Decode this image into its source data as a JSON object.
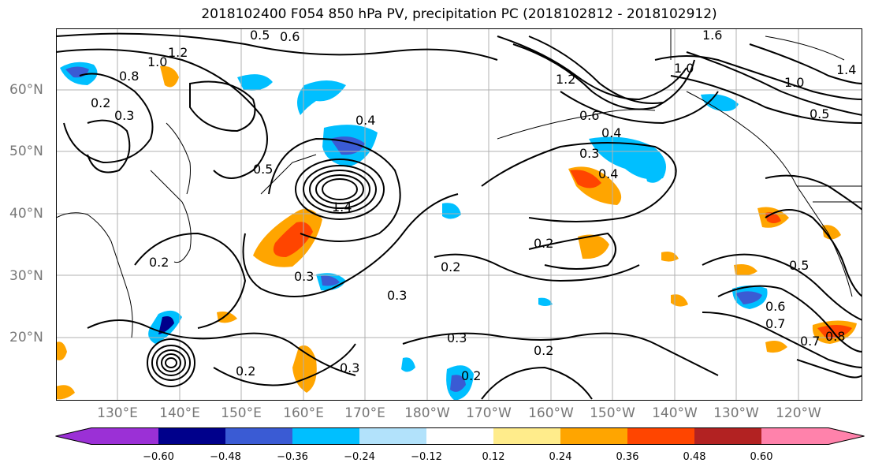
{
  "title": "2018102400 F054 850 hPa PV, precipitation PC (2018102812 - 2018102912)",
  "lat_labels": [
    "60°N",
    "50°N",
    "40°N",
    "30°N",
    "20°N"
  ],
  "lon_labels": [
    "130°E",
    "140°E",
    "150°E",
    "160°E",
    "170°E",
    "180°W",
    "170°W",
    "160°W",
    "150°W",
    "140°W",
    "130°W",
    "120°W"
  ],
  "colorbar": {
    "ticks": [
      "−0.60",
      "−0.48",
      "−0.36",
      "−0.24",
      "−0.12",
      "0.12",
      "0.24",
      "0.36",
      "0.48",
      "0.60"
    ],
    "colors": [
      "#9b30d6",
      "#00008b",
      "#3a5bd4",
      "#00bfff",
      "#b2e2fb",
      "#ffffff",
      "#ffec8b",
      "#ffa500",
      "#ff4500",
      "#b22222",
      "#ff82ab"
    ]
  },
  "contour_labels": [
    "0.5",
    "0.6",
    "1.2",
    "1.0",
    "0.8",
    "0.2",
    "0.3",
    "0.4",
    "1.4",
    "0.2",
    "0.3",
    "0.2",
    "0.3",
    "0.2",
    "0.4",
    "0.3",
    "0.4",
    "0.5",
    "1.2",
    "1.4",
    "1.0",
    "0.6",
    "0.5",
    "0.7",
    "0.8",
    "0.2",
    "0.3",
    "0.3",
    "0.2",
    "0.2",
    "0.5",
    "0.6",
    "0.7",
    "1.6",
    "1.0"
  ]
}
